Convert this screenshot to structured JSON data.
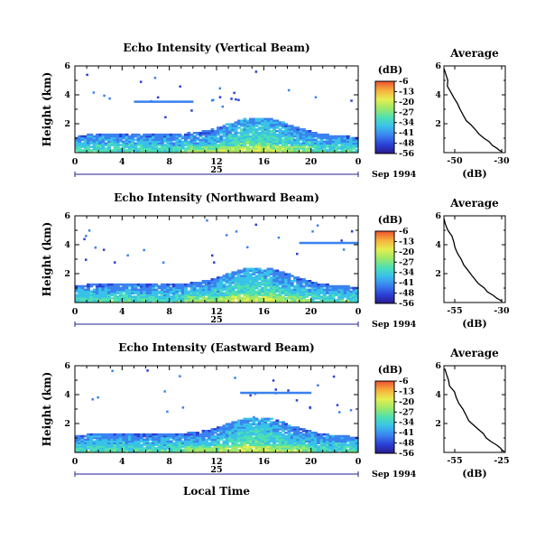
{
  "figure": {
    "xlabel": "Local Time",
    "date_label": "Sep 1994",
    "day_label": "25",
    "colorbar_unit": "(dB)",
    "profile_title": "Average",
    "profile_xlabel": "(dB)"
  },
  "chart_data": [
    {
      "type": "heatmap",
      "title": "Echo Intensity (Vertical Beam)",
      "xlabel": "",
      "ylabel": "Height (km)",
      "xlim": [
        0,
        24
      ],
      "ylim": [
        0,
        6
      ],
      "x_ticks": [
        "0",
        "4",
        "8",
        "12",
        "16",
        "20",
        "0"
      ],
      "y_ticks": [
        "2",
        "4",
        "6"
      ],
      "colorbar_ticks": [
        "-6",
        "-13",
        "-20",
        "-27",
        "-34",
        "-41",
        "-48",
        "-56"
      ],
      "colorbar_range": [
        -56,
        -6
      ],
      "profile": {
        "type": "line",
        "title": "Average",
        "xlim": [
          -50,
          -30
        ],
        "x_ticks": [
          "-50",
          "-30"
        ],
        "y_ticks": [
          "2",
          "4",
          "6"
        ],
        "x": [
          -49.8,
          -49.5,
          -49.0,
          -48.6,
          -47.8,
          -46.8,
          -45.8,
          -44.5,
          -43.6,
          -42.4,
          -41.2,
          -39.7,
          -38.5,
          -36.9,
          -35.4,
          -33.9,
          -32.6,
          -31.6,
          -30.9
        ],
        "y": [
          5.8,
          5.4,
          5.0,
          4.6,
          4.2,
          3.8,
          3.4,
          3.0,
          2.6,
          2.2,
          1.9,
          1.6,
          1.3,
          1.0,
          0.75,
          0.5,
          0.3,
          0.15,
          0.05
        ]
      }
    },
    {
      "type": "heatmap",
      "title": "Echo Intensity (Northward Beam)",
      "xlabel": "",
      "ylabel": "Height (km)",
      "xlim": [
        0,
        24
      ],
      "ylim": [
        0,
        6
      ],
      "x_ticks": [
        "0",
        "4",
        "8",
        "12",
        "16",
        "20",
        "0"
      ],
      "y_ticks": [
        "2",
        "4",
        "6"
      ],
      "colorbar_ticks": [
        "-6",
        "-13",
        "-20",
        "-27",
        "-34",
        "-41",
        "-48",
        "-56"
      ],
      "colorbar_range": [
        -56,
        -6
      ],
      "profile": {
        "type": "line",
        "title": "Average",
        "xlim": [
          -55,
          -30
        ],
        "x_ticks": [
          "-55",
          "-30"
        ],
        "y_ticks": [
          "2",
          "4",
          "6"
        ],
        "x": [
          -54.6,
          -54.0,
          -53.2,
          -52.0,
          -51.3,
          -50.4,
          -49.5,
          -47.6,
          -46.8,
          -45.4,
          -44.0,
          -42.5,
          -40.8,
          -38.9,
          -37.0,
          -35.3,
          -33.6,
          -32.3,
          -31.2
        ],
        "y": [
          5.8,
          5.4,
          5.0,
          4.6,
          4.2,
          3.8,
          3.4,
          3.0,
          2.6,
          2.2,
          1.9,
          1.6,
          1.3,
          1.0,
          0.75,
          0.5,
          0.3,
          0.15,
          0.05
        ]
      }
    },
    {
      "type": "heatmap",
      "title": "Echo Intensity (Eastward Beam)",
      "xlabel": "Local Time",
      "ylabel": "Height (km)",
      "xlim": [
        0,
        24
      ],
      "ylim": [
        0,
        6
      ],
      "x_ticks": [
        "0",
        "4",
        "8",
        "12",
        "16",
        "20",
        "0"
      ],
      "y_ticks": [
        "2",
        "4",
        "6"
      ],
      "colorbar_ticks": [
        "-6",
        "-13",
        "-20",
        "-27",
        "-34",
        "-41",
        "-48",
        "-56"
      ],
      "colorbar_range": [
        -56,
        -6
      ],
      "profile": {
        "type": "line",
        "title": "Average",
        "xlim": [
          -55,
          -25
        ],
        "x_ticks": [
          "-55",
          "-25"
        ],
        "y_ticks": [
          "2",
          "4",
          "6"
        ],
        "x": [
          -54.6,
          -54.0,
          -53.0,
          -51.8,
          -50.2,
          -49.2,
          -47.5,
          -45.6,
          -44.1,
          -42.4,
          -40.6,
          -38.4,
          -36.2,
          -33.9,
          -31.6,
          -29.4,
          -27.6,
          -26.3,
          -25.5
        ],
        "y": [
          5.8,
          5.4,
          5.0,
          4.6,
          4.2,
          3.8,
          3.4,
          3.0,
          2.6,
          2.2,
          1.9,
          1.6,
          1.3,
          1.0,
          0.75,
          0.5,
          0.3,
          0.15,
          0.05
        ]
      }
    }
  ],
  "colors": {
    "colormap": [
      "#2a1a8c",
      "#2b3fd6",
      "#3b82f0",
      "#39c2e8",
      "#4ee0b2",
      "#9be86a",
      "#e6ee50",
      "#f6b23c",
      "#ee5030"
    ],
    "axis": "#000000",
    "timeline": "#1f1f8f"
  }
}
